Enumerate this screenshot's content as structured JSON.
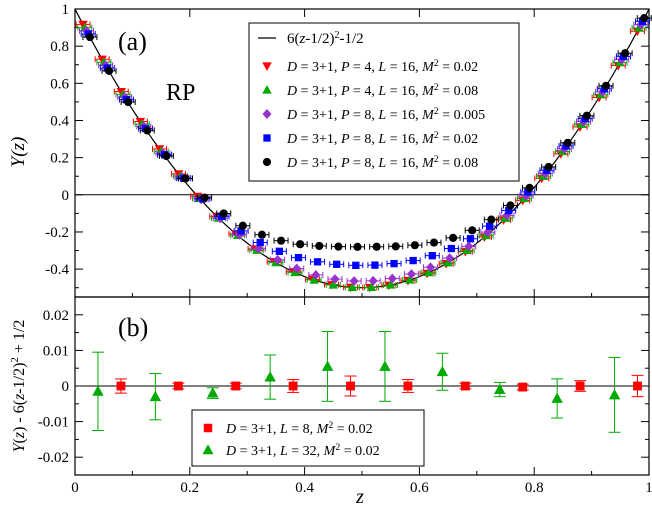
{
  "chart_data": [
    {
      "type": "scatter",
      "panel_label": "(a)",
      "annotation": "RP",
      "xlabel": "",
      "ylabel": "Y(z)",
      "xlim": [
        0,
        1
      ],
      "ylim": [
        -0.55,
        1.0
      ],
      "y_ticks": [
        "1",
        "0.8",
        "0.6",
        "0.4",
        "0.2",
        "0",
        "-0.2",
        "-0.4"
      ],
      "curve": {
        "name": "6(z-1/2)²-1/2",
        "color": "#000000",
        "formula": "6*(z-0.5)^2-0.5"
      },
      "legend": [
        "6(z-1/2)²-1/2",
        "D = 3+1, P = 4, L = 16, M² = 0.02",
        "D = 3+1, P = 4, L = 16, M² = 0.08",
        "D = 3+1, P = 8, L = 16, M² = 0.005",
        "D = 3+1, P = 8, L = 16, M² = 0.02",
        "D = 3+1, P = 8, L = 16, M² = 0.08"
      ],
      "series": [
        {
          "name": "D = 3+1, P = 4, L = 16, M² = 0.02",
          "marker": "triangle-down",
          "color": "#ff0000",
          "shift": 0.0
        },
        {
          "name": "D = 3+1, P = 4, L = 16, M² = 0.08",
          "marker": "triangle-up",
          "color": "#00aa00",
          "shift": 0.0
        },
        {
          "name": "D = 3+1, P = 8, L = 16, M² = 0.005",
          "marker": "diamond",
          "color": "#9932cc",
          "shift": 0.035
        },
        {
          "name": "D = 3+1, P = 8, L = 16, M² = 0.02",
          "marker": "square",
          "color": "#0000ff",
          "shift": 0.12
        },
        {
          "name": "D = 3+1, P = 8, L = 16, M² = 0.08",
          "marker": "circle",
          "color": "#000000",
          "shift": 0.22
        }
      ]
    },
    {
      "type": "scatter",
      "panel_label": "(b)",
      "xlabel": "z",
      "ylabel": "Y(z) - 6(z-1/2)² + 1/2",
      "xlim": [
        0,
        1
      ],
      "ylim": [
        -0.025,
        0.025
      ],
      "x_ticks": [
        "0",
        "0.2",
        "0.4",
        "0.6",
        "0.8",
        "1"
      ],
      "y_ticks": [
        "0.02",
        "0.01",
        "0",
        "-0.01",
        "-0.02"
      ],
      "legend": [
        "D = 3+1, L = 8, M² = 0.02",
        "D = 3+1, L = 32, M² = 0.02"
      ],
      "series": [
        {
          "name": "D = 3+1, L = 8, M² = 0.02",
          "marker": "square",
          "color": "#ff0000",
          "x": [
            0.08,
            0.18,
            0.28,
            0.38,
            0.48,
            0.58,
            0.68,
            0.78,
            0.88,
            0.98
          ],
          "y": [
            0.0,
            0.0,
            0.0,
            0.0,
            0.0,
            0.0,
            0.0,
            -0.0003,
            0.0,
            0.0
          ],
          "err": [
            0.002,
            0.0008,
            0.0008,
            0.0018,
            0.0028,
            0.0018,
            0.0008,
            0.0008,
            0.0015,
            0.003
          ]
        },
        {
          "name": "D = 3+1, L = 32, M² = 0.02",
          "marker": "triangle-up",
          "color": "#00aa00",
          "x": [
            0.04,
            0.14,
            0.24,
            0.34,
            0.44,
            0.54,
            0.64,
            0.74,
            0.84,
            0.94
          ],
          "y": [
            -0.0015,
            -0.003,
            -0.002,
            0.0025,
            0.0055,
            0.0055,
            0.004,
            -0.001,
            -0.0035,
            -0.0025
          ],
          "err": [
            0.011,
            0.0065,
            0.0015,
            0.0062,
            0.0098,
            0.0098,
            0.0052,
            0.002,
            0.0055,
            0.0105
          ]
        }
      ]
    }
  ]
}
